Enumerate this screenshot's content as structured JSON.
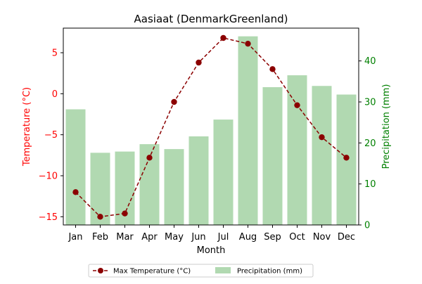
{
  "chart_data": {
    "type": "bar",
    "title": "Aasiaat (DenmarkGreenland)",
    "xlabel": "Month",
    "ylabel_left": "Temperature (°C)",
    "ylabel_right": "Precipitation (mm)",
    "categories": [
      "Jan",
      "Feb",
      "Mar",
      "Apr",
      "May",
      "Jun",
      "Jul",
      "Aug",
      "Sep",
      "Oct",
      "Nov",
      "Dec"
    ],
    "ylim_left": [
      -16,
      8
    ],
    "ylim_right": [
      0,
      48
    ],
    "yticks_left": [
      -15,
      -10,
      -5,
      0,
      5
    ],
    "yticks_right": [
      0,
      10,
      20,
      30,
      40
    ],
    "grid": false,
    "legend_position": "bottom-center",
    "series": [
      {
        "name": "Max Temperature (°C)",
        "kind": "line",
        "axis": "left",
        "color": "#8b0000",
        "values": [
          -12.0,
          -15.0,
          -14.6,
          -7.8,
          -1.0,
          3.8,
          6.8,
          6.1,
          3.0,
          -1.4,
          -5.3,
          -7.8
        ]
      },
      {
        "name": "Precipitation (mm)",
        "kind": "bar",
        "axis": "right",
        "color": "#b1d9b1",
        "values": [
          28.2,
          17.6,
          17.9,
          19.7,
          18.5,
          21.6,
          25.7,
          46.0,
          33.6,
          36.5,
          33.9,
          31.8
        ]
      }
    ],
    "axis_colors": {
      "left": "#ff0000",
      "right": "#008000"
    }
  }
}
